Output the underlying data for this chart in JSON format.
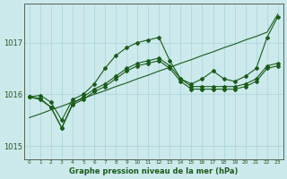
{
  "title": "Graphe pression niveau de la mer (hPa)",
  "bg_color": "#cce9ec",
  "grid_color": "#a8d4d8",
  "line_color": "#1a5c1a",
  "xlim": [
    -0.5,
    23.5
  ],
  "ylim": [
    1014.75,
    1017.75
  ],
  "yticks": [
    1015,
    1016,
    1017
  ],
  "xticks": [
    0,
    1,
    2,
    3,
    4,
    5,
    6,
    7,
    8,
    9,
    10,
    11,
    12,
    13,
    14,
    15,
    16,
    17,
    18,
    19,
    20,
    21,
    22,
    23
  ],
  "line_straight": [
    1015.55,
    1015.62,
    1015.7,
    1015.77,
    1015.85,
    1015.92,
    1016.0,
    1016.07,
    1016.15,
    1016.22,
    1016.3,
    1016.37,
    1016.45,
    1016.52,
    1016.6,
    1016.67,
    1016.75,
    1016.82,
    1016.9,
    1016.97,
    1017.05,
    1017.12,
    1017.2,
    1017.55
  ],
  "line_wavy": [
    1015.95,
    1015.98,
    1015.85,
    1015.5,
    1015.9,
    1016.0,
    1016.2,
    1016.5,
    1016.75,
    1016.9,
    1017.0,
    1017.05,
    1017.1,
    1016.65,
    1016.3,
    1016.2,
    1016.3,
    1016.45,
    1016.3,
    1016.25,
    1016.35,
    1016.5,
    1017.1,
    1017.5
  ],
  "line_mid1": [
    1015.95,
    1015.92,
    1015.75,
    1015.35,
    1015.82,
    1015.95,
    1016.1,
    1016.2,
    1016.35,
    1016.5,
    1016.6,
    1016.65,
    1016.7,
    1016.55,
    1016.3,
    1016.15,
    1016.15,
    1016.15,
    1016.15,
    1016.15,
    1016.2,
    1016.3,
    1016.55,
    1016.6
  ],
  "line_mid2": [
    1015.95,
    1015.9,
    1015.75,
    1015.35,
    1015.8,
    1015.9,
    1016.05,
    1016.15,
    1016.3,
    1016.45,
    1016.55,
    1016.6,
    1016.65,
    1016.5,
    1016.25,
    1016.1,
    1016.1,
    1016.1,
    1016.1,
    1016.1,
    1016.15,
    1016.25,
    1016.5,
    1016.55
  ]
}
